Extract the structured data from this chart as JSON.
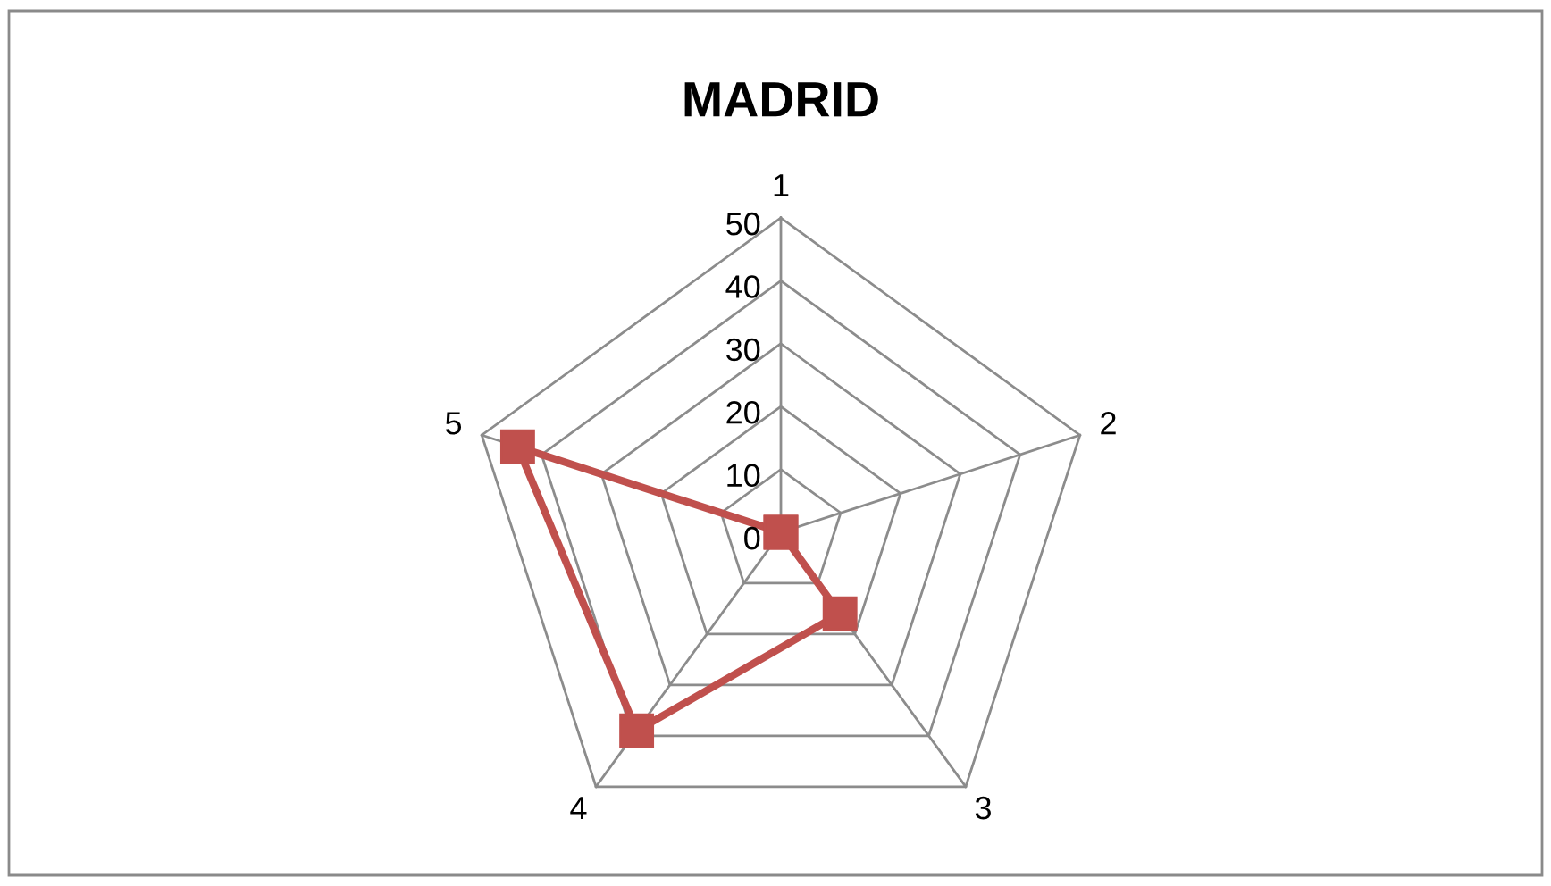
{
  "chart_data": {
    "type": "radar",
    "title": "MADRID",
    "categories": [
      "1",
      "2",
      "3",
      "4",
      "5"
    ],
    "series": [
      {
        "color": "#c0504d",
        "values": [
          0,
          0,
          16,
          39,
          44
        ]
      }
    ],
    "ylim": [
      0,
      50
    ],
    "yticks": [
      0,
      10,
      20,
      30,
      40,
      50
    ],
    "grid": true,
    "marker": "square",
    "line_style": "solid"
  }
}
